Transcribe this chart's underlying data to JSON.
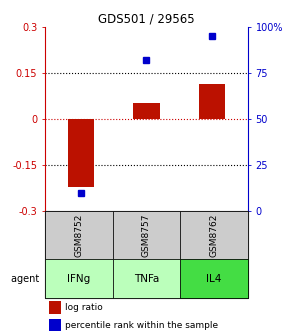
{
  "title": "GDS501 / 29565",
  "samples": [
    "GSM8752",
    "GSM8757",
    "GSM8762"
  ],
  "agents": [
    "IFNg",
    "TNFa",
    "IL4"
  ],
  "log_ratios": [
    -0.222,
    0.052,
    0.115
  ],
  "percentile_ranks": [
    10.0,
    82.0,
    95.0
  ],
  "ylim_left": [
    -0.3,
    0.3
  ],
  "ylim_right": [
    0,
    100
  ],
  "yticks_left": [
    -0.3,
    -0.15,
    0.0,
    0.15,
    0.3
  ],
  "yticks_right": [
    0,
    25,
    50,
    75,
    100
  ],
  "ytick_labels_left": [
    "-0.3",
    "-0.15",
    "0",
    "0.15",
    "0.3"
  ],
  "ytick_labels_right": [
    "0",
    "25",
    "50",
    "75",
    "100%"
  ],
  "hlines": [
    -0.15,
    0.15
  ],
  "zeroline": 0.0,
  "bar_color": "#bb1100",
  "dot_color": "#0000cc",
  "agent_colors": [
    "#bbffbb",
    "#bbffbb",
    "#44dd44"
  ],
  "sample_bg_color": "#cccccc",
  "legend_bar_label": "log ratio",
  "legend_dot_label": "percentile rank within the sample",
  "agent_label": "agent",
  "bar_width": 0.4
}
